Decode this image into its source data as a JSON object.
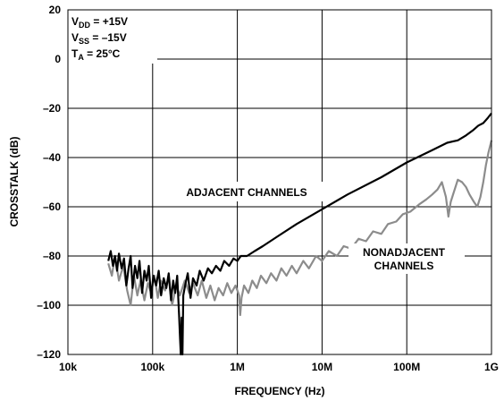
{
  "chart_data": {
    "type": "line",
    "xlabel": "FREQUENCY (Hz)",
    "ylabel": "CROSSTALK (dB)",
    "x_scale": "log",
    "xlim": [
      10000,
      1000000000
    ],
    "ylim": [
      -120,
      20
    ],
    "grid": true,
    "x_ticks": [
      {
        "value": 10000,
        "label": "10k"
      },
      {
        "value": 100000,
        "label": "100k"
      },
      {
        "value": 1000000,
        "label": "1M"
      },
      {
        "value": 10000000,
        "label": "10M"
      },
      {
        "value": 100000000,
        "label": "100M"
      },
      {
        "value": 1000000000,
        "label": "1G"
      }
    ],
    "y_ticks": [
      {
        "value": 20,
        "label": "20"
      },
      {
        "value": 0,
        "label": "0"
      },
      {
        "value": -20,
        "label": "–20"
      },
      {
        "value": -40,
        "label": "–40"
      },
      {
        "value": -60,
        "label": "–60"
      },
      {
        "value": -80,
        "label": "–80"
      },
      {
        "value": -100,
        "label": "–100"
      },
      {
        "value": -120,
        "label": "–120"
      }
    ],
    "conditions": {
      "vdd": {
        "main": "V",
        "sub": "DD",
        "rest": " = +15V"
      },
      "vss": {
        "main": "V",
        "sub": "SS",
        "rest": " = –15V"
      },
      "ta": {
        "main": "T",
        "sub": "A",
        "rest": " = 25°C"
      }
    },
    "annotations": {
      "adjacent": "ADJACENT CHANNELS",
      "nonadjacent_line1": "NONADJACENT",
      "nonadjacent_line2": "CHANNELS"
    },
    "colors": {
      "adjacent": "#000000",
      "nonadjacent": "#8c8c8c"
    },
    "series": [
      {
        "key": "adjacent",
        "points": [
          [
            30000,
            -82
          ],
          [
            32000,
            -78
          ],
          [
            34000,
            -84
          ],
          [
            36000,
            -80
          ],
          [
            38000,
            -86
          ],
          [
            40000,
            -79
          ],
          [
            43000,
            -85
          ],
          [
            46000,
            -81
          ],
          [
            49000,
            -92
          ],
          [
            52000,
            -85
          ],
          [
            55000,
            -80
          ],
          [
            58000,
            -93
          ],
          [
            62000,
            -84
          ],
          [
            66000,
            -89
          ],
          [
            70000,
            -82
          ],
          [
            75000,
            -95
          ],
          [
            80000,
            -86
          ],
          [
            85000,
            -90
          ],
          [
            90000,
            -84
          ],
          [
            96000,
            -97
          ],
          [
            102000,
            -88
          ],
          [
            110000,
            -92
          ],
          [
            118000,
            -86
          ],
          [
            126000,
            -96
          ],
          [
            135000,
            -89
          ],
          [
            145000,
            -93
          ],
          [
            155000,
            -87
          ],
          [
            165000,
            -98
          ],
          [
            175000,
            -90
          ],
          [
            185000,
            -95
          ],
          [
            195000,
            -88
          ],
          [
            205000,
            -104
          ],
          [
            210000,
            -112
          ],
          [
            215000,
            -120
          ],
          [
            220000,
            -105
          ],
          [
            225000,
            -120
          ],
          [
            230000,
            -96
          ],
          [
            245000,
            -91
          ],
          [
            260000,
            -87
          ],
          [
            280000,
            -97
          ],
          [
            300000,
            -89
          ],
          [
            330000,
            -92
          ],
          [
            360000,
            -86
          ],
          [
            400000,
            -90
          ],
          [
            450000,
            -85
          ],
          [
            500000,
            -87
          ],
          [
            560000,
            -84
          ],
          [
            630000,
            -86
          ],
          [
            700000,
            -82
          ],
          [
            800000,
            -84
          ],
          [
            900000,
            -81
          ],
          [
            1000000,
            -82
          ],
          [
            1100000,
            -80
          ],
          [
            1300000,
            -80
          ],
          [
            1600000,
            -78
          ],
          [
            2000000,
            -76
          ],
          [
            3000000,
            -72
          ],
          [
            5000000,
            -67
          ],
          [
            10000000,
            -61
          ],
          [
            20000000,
            -55
          ],
          [
            50000000,
            -48
          ],
          [
            100000000,
            -42
          ],
          [
            200000000,
            -37
          ],
          [
            300000000,
            -34
          ],
          [
            400000000,
            -33
          ],
          [
            500000000,
            -31
          ],
          [
            600000000,
            -29
          ],
          [
            700000000,
            -27
          ],
          [
            800000000,
            -26
          ],
          [
            900000000,
            -24
          ],
          [
            1000000000,
            -22
          ]
        ]
      },
      {
        "key": "nonadjacent",
        "points": [
          [
            30000,
            -83
          ],
          [
            33000,
            -88
          ],
          [
            36000,
            -80
          ],
          [
            40000,
            -90
          ],
          [
            45000,
            -84
          ],
          [
            50000,
            -94
          ],
          [
            55000,
            -100
          ],
          [
            60000,
            -88
          ],
          [
            66000,
            -96
          ],
          [
            72000,
            -90
          ],
          [
            80000,
            -98
          ],
          [
            88000,
            -91
          ],
          [
            96000,
            -95
          ],
          [
            105000,
            -88
          ],
          [
            115000,
            -97
          ],
          [
            125000,
            -90
          ],
          [
            140000,
            -94
          ],
          [
            155000,
            -89
          ],
          [
            170000,
            -100
          ],
          [
            190000,
            -92
          ],
          [
            210000,
            -96
          ],
          [
            240000,
            -90
          ],
          [
            270000,
            -95
          ],
          [
            300000,
            -91
          ],
          [
            340000,
            -96
          ],
          [
            380000,
            -90
          ],
          [
            430000,
            -97
          ],
          [
            480000,
            -92
          ],
          [
            540000,
            -98
          ],
          [
            600000,
            -93
          ],
          [
            680000,
            -96
          ],
          [
            760000,
            -91
          ],
          [
            850000,
            -95
          ],
          [
            950000,
            -92
          ],
          [
            1000000,
            -94
          ],
          [
            1050000,
            -96
          ],
          [
            1080000,
            -104
          ],
          [
            1120000,
            -97
          ],
          [
            1200000,
            -92
          ],
          [
            1350000,
            -95
          ],
          [
            1500000,
            -90
          ],
          [
            1700000,
            -93
          ],
          [
            1900000,
            -88
          ],
          [
            2200000,
            -91
          ],
          [
            2500000,
            -87
          ],
          [
            2900000,
            -90
          ],
          [
            3300000,
            -85
          ],
          [
            3800000,
            -88
          ],
          [
            4400000,
            -84
          ],
          [
            5000000,
            -87
          ],
          [
            6000000,
            -82
          ],
          [
            7000000,
            -85
          ],
          [
            8500000,
            -80
          ],
          [
            10000000,
            -82
          ],
          [
            12000000,
            -78
          ],
          [
            15000000,
            -80
          ],
          [
            18000000,
            -76
          ],
          [
            22000000,
            -77
          ],
          [
            27000000,
            -73
          ],
          [
            33000000,
            -74
          ],
          [
            40000000,
            -70
          ],
          [
            50000000,
            -71
          ],
          [
            60000000,
            -67
          ],
          [
            75000000,
            -66
          ],
          [
            90000000,
            -63
          ],
          [
            110000000,
            -62
          ],
          [
            140000000,
            -59
          ],
          [
            170000000,
            -57
          ],
          [
            200000000,
            -55
          ],
          [
            230000000,
            -53
          ],
          [
            260000000,
            -50
          ],
          [
            290000000,
            -56
          ],
          [
            310000000,
            -64
          ],
          [
            330000000,
            -58
          ],
          [
            360000000,
            -54
          ],
          [
            400000000,
            -49
          ],
          [
            450000000,
            -50
          ],
          [
            500000000,
            -52
          ],
          [
            550000000,
            -55
          ],
          [
            620000000,
            -58
          ],
          [
            680000000,
            -60
          ],
          [
            740000000,
            -56
          ],
          [
            800000000,
            -50
          ],
          [
            860000000,
            -43
          ],
          [
            920000000,
            -38
          ],
          [
            1000000000,
            -33
          ]
        ]
      }
    ]
  }
}
